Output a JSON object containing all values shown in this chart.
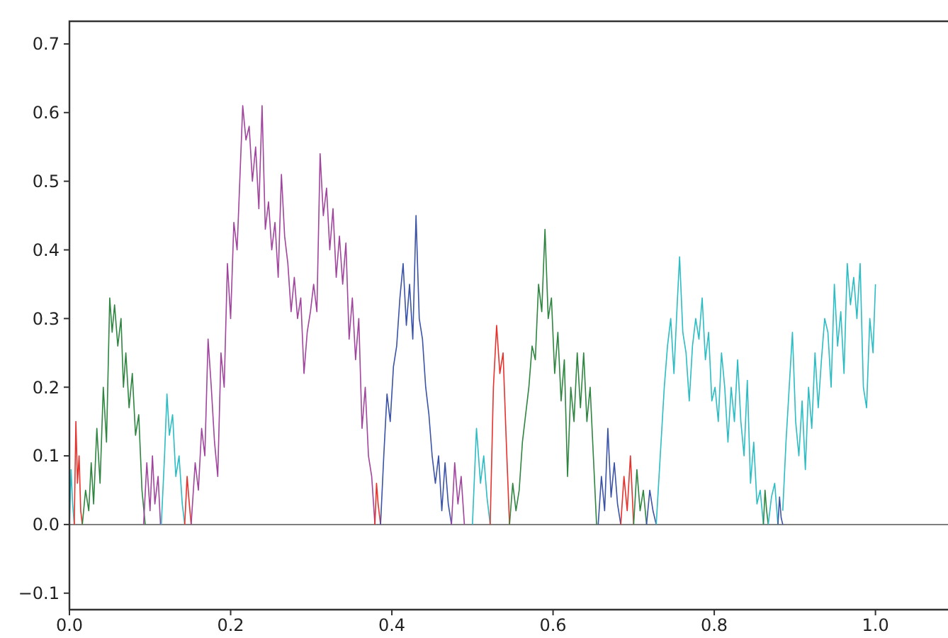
{
  "chart_data": {
    "type": "line",
    "xlim": [
      0,
      1.09
    ],
    "ylim": [
      -0.124,
      0.733
    ],
    "xticks": [
      {
        "value": 0,
        "label": "0.0"
      },
      {
        "value": 0.2,
        "label": "0.2"
      },
      {
        "value": 0.4,
        "label": "0.4"
      },
      {
        "value": 0.6,
        "label": "0.6"
      },
      {
        "value": 0.8,
        "label": "0.8"
      },
      {
        "value": 1,
        "label": "1.0"
      }
    ],
    "yticks": [
      {
        "value": -0.1,
        "label": "−0.1"
      },
      {
        "value": 0,
        "label": "0.0"
      },
      {
        "value": 0.1,
        "label": "0.1"
      },
      {
        "value": 0.2,
        "label": "0.2"
      },
      {
        "value": 0.3,
        "label": "0.3"
      },
      {
        "value": 0.4,
        "label": "0.4"
      },
      {
        "value": 0.5,
        "label": "0.5"
      },
      {
        "value": 0.6,
        "label": "0.6"
      },
      {
        "value": 0.7,
        "label": "0.7"
      }
    ],
    "ref_lines": [
      {
        "axis": "y",
        "value": 0,
        "color": "#808080"
      }
    ],
    "line_style": "solid",
    "series": [
      {
        "color": "#2bbcc4",
        "x": [
          0,
          0.002,
          0.004,
          0.006
        ],
        "values": [
          0,
          0.08,
          0.03,
          0
        ]
      },
      {
        "color": "#e8312b",
        "x": [
          0.006,
          0.008,
          0.01,
          0.012,
          0.014,
          0.016
        ],
        "values": [
          0,
          0.15,
          0.06,
          0.1,
          0.02,
          0
        ]
      },
      {
        "color": "#2e8540",
        "x": [
          0.016,
          0.02,
          0.024,
          0.027,
          0.03,
          0.034,
          0.038,
          0.042,
          0.046,
          0.05,
          0.053,
          0.056,
          0.06,
          0.064,
          0.067,
          0.07,
          0.074,
          0.078,
          0.082,
          0.086,
          0.09,
          0.094
        ],
        "values": [
          0,
          0.05,
          0.02,
          0.09,
          0.03,
          0.14,
          0.06,
          0.2,
          0.12,
          0.33,
          0.28,
          0.32,
          0.26,
          0.3,
          0.2,
          0.25,
          0.17,
          0.22,
          0.13,
          0.16,
          0.05,
          0
        ]
      },
      {
        "color": "#a0449e",
        "x": [
          0.092,
          0.096,
          0.1,
          0.103,
          0.106,
          0.11,
          0.113
        ],
        "values": [
          0,
          0.09,
          0.02,
          0.1,
          0.03,
          0.07,
          0
        ]
      },
      {
        "color": "#2bbcc4",
        "x": [
          0.114,
          0.118,
          0.121,
          0.124,
          0.128,
          0.132,
          0.136,
          0.14,
          0.143
        ],
        "values": [
          0,
          0.1,
          0.19,
          0.13,
          0.16,
          0.07,
          0.1,
          0.03,
          0
        ]
      },
      {
        "color": "#e8312b",
        "x": [
          0.143,
          0.146,
          0.148,
          0.151
        ],
        "values": [
          0,
          0.07,
          0.04,
          0
        ]
      },
      {
        "color": "#a0449e",
        "x": [
          0.151,
          0.156,
          0.16,
          0.164,
          0.168,
          0.172,
          0.176,
          0.18,
          0.184,
          0.188,
          0.192,
          0.196,
          0.2,
          0.204,
          0.208,
          0.212,
          0.215,
          0.219,
          0.223,
          0.227,
          0.231,
          0.235,
          0.239,
          0.243,
          0.247,
          0.251,
          0.255,
          0.259,
          0.263,
          0.267,
          0.271,
          0.275,
          0.279,
          0.283,
          0.287,
          0.291,
          0.295,
          0.299,
          0.303,
          0.307,
          0.311,
          0.315,
          0.319,
          0.323,
          0.327,
          0.331,
          0.335,
          0.339,
          0.343,
          0.347,
          0.351,
          0.355,
          0.359,
          0.363,
          0.367,
          0.371,
          0.375,
          0.379
        ],
        "values": [
          0,
          0.09,
          0.05,
          0.14,
          0.1,
          0.27,
          0.2,
          0.12,
          0.07,
          0.25,
          0.2,
          0.38,
          0.3,
          0.44,
          0.4,
          0.52,
          0.61,
          0.56,
          0.58,
          0.5,
          0.55,
          0.46,
          0.61,
          0.43,
          0.47,
          0.4,
          0.44,
          0.36,
          0.51,
          0.42,
          0.38,
          0.31,
          0.36,
          0.3,
          0.33,
          0.22,
          0.28,
          0.31,
          0.35,
          0.31,
          0.54,
          0.45,
          0.49,
          0.4,
          0.46,
          0.36,
          0.42,
          0.35,
          0.41,
          0.27,
          0.33,
          0.24,
          0.3,
          0.14,
          0.2,
          0.1,
          0.07,
          0
        ]
      },
      {
        "color": "#e8312b",
        "x": [
          0.379,
          0.381,
          0.383,
          0.386
        ],
        "values": [
          0,
          0.06,
          0.03,
          0
        ]
      },
      {
        "color": "#3a52a8",
        "x": [
          0.386,
          0.39,
          0.394,
          0.398,
          0.402,
          0.406,
          0.41,
          0.414,
          0.418,
          0.422,
          0.426,
          0.43,
          0.434,
          0.438,
          0.442,
          0.446,
          0.45,
          0.454,
          0.458,
          0.462,
          0.466,
          0.47,
          0.474
        ],
        "values": [
          0,
          0.1,
          0.19,
          0.15,
          0.23,
          0.26,
          0.33,
          0.38,
          0.29,
          0.35,
          0.27,
          0.45,
          0.3,
          0.27,
          0.2,
          0.16,
          0.1,
          0.06,
          0.1,
          0.02,
          0.09,
          0.03,
          0
        ]
      },
      {
        "color": "#a0449e",
        "x": [
          0.474,
          0.478,
          0.482,
          0.486,
          0.49
        ],
        "values": [
          0,
          0.09,
          0.03,
          0.07,
          0
        ]
      },
      {
        "color": "#2bbcc4",
        "x": [
          0.5,
          0.505,
          0.51,
          0.514,
          0.518,
          0.522
        ],
        "values": [
          0,
          0.14,
          0.06,
          0.1,
          0.04,
          0
        ]
      },
      {
        "color": "#e8312b",
        "x": [
          0.522,
          0.526,
          0.53,
          0.534,
          0.538,
          0.542,
          0.546
        ],
        "values": [
          0,
          0.2,
          0.29,
          0.22,
          0.25,
          0.12,
          0
        ]
      },
      {
        "color": "#2e8540",
        "x": [
          0.546,
          0.55,
          0.554,
          0.558,
          0.562,
          0.566,
          0.57,
          0.574,
          0.578,
          0.582,
          0.586,
          0.59,
          0.594,
          0.598,
          0.602,
          0.606,
          0.61,
          0.614,
          0.618,
          0.622,
          0.626,
          0.63,
          0.634,
          0.638,
          0.642,
          0.646,
          0.65,
          0.654
        ],
        "values": [
          0,
          0.06,
          0.02,
          0.05,
          0.12,
          0.16,
          0.2,
          0.26,
          0.24,
          0.35,
          0.31,
          0.43,
          0.3,
          0.33,
          0.22,
          0.28,
          0.18,
          0.24,
          0.07,
          0.2,
          0.15,
          0.25,
          0.17,
          0.25,
          0.15,
          0.2,
          0.1,
          0
        ]
      },
      {
        "color": "#3a52a8",
        "x": [
          0.656,
          0.66,
          0.664,
          0.668,
          0.672,
          0.676,
          0.68,
          0.684
        ],
        "values": [
          0,
          0.07,
          0.02,
          0.14,
          0.04,
          0.09,
          0.03,
          0
        ]
      },
      {
        "color": "#e8312b",
        "x": [
          0.684,
          0.688,
          0.692,
          0.696,
          0.7
        ],
        "values": [
          0,
          0.07,
          0.02,
          0.1,
          0
        ]
      },
      {
        "color": "#2e8540",
        "x": [
          0.7,
          0.704,
          0.708,
          0.712,
          0.716
        ],
        "values": [
          0,
          0.08,
          0.02,
          0.05,
          0
        ]
      },
      {
        "color": "#3a52a8",
        "x": [
          0.716,
          0.72,
          0.724,
          0.728
        ],
        "values": [
          0,
          0.05,
          0.02,
          0
        ]
      },
      {
        "color": "#2bbcc4",
        "x": [
          0.728,
          0.733,
          0.738,
          0.742,
          0.746,
          0.75,
          0.754,
          0.757,
          0.761,
          0.765,
          0.769,
          0.773,
          0.777,
          0.781,
          0.785,
          0.789,
          0.793,
          0.797,
          0.801,
          0.805,
          0.809,
          0.813,
          0.817,
          0.821,
          0.825,
          0.829,
          0.833,
          0.837,
          0.841,
          0.845,
          0.849,
          0.853,
          0.857,
          0.861
        ],
        "values": [
          0,
          0.1,
          0.2,
          0.26,
          0.3,
          0.22,
          0.32,
          0.39,
          0.28,
          0.25,
          0.18,
          0.26,
          0.3,
          0.27,
          0.33,
          0.24,
          0.28,
          0.18,
          0.2,
          0.15,
          0.25,
          0.2,
          0.12,
          0.2,
          0.15,
          0.24,
          0.15,
          0.1,
          0.21,
          0.06,
          0.12,
          0.03,
          0.05,
          0
        ]
      },
      {
        "color": "#2e8540",
        "x": [
          0.861,
          0.863,
          0.865,
          0.867
        ],
        "values": [
          0,
          0.05,
          0.02,
          0
        ]
      },
      {
        "color": "#2bbcc4",
        "x": [
          0.867,
          0.871,
          0.875,
          0.879
        ],
        "values": [
          0,
          0.04,
          0.06,
          0
        ]
      },
      {
        "color": "#3a52a8",
        "x": [
          0.879,
          0.881,
          0.883,
          0.885
        ],
        "values": [
          0,
          0.04,
          0.01,
          0
        ]
      },
      {
        "color": "#2bbcc4",
        "x": [
          0.885,
          0.889,
          0.893,
          0.897,
          0.901,
          0.905,
          0.909,
          0.913,
          0.917,
          0.921,
          0.925,
          0.929,
          0.933,
          0.937,
          0.941,
          0.945,
          0.949,
          0.953,
          0.957,
          0.961,
          0.965,
          0.969,
          0.973,
          0.977,
          0.981,
          0.985,
          0.989,
          0.993,
          0.997,
          1.0
        ],
        "values": [
          0.02,
          0.12,
          0.2,
          0.28,
          0.15,
          0.1,
          0.18,
          0.08,
          0.2,
          0.14,
          0.25,
          0.17,
          0.24,
          0.3,
          0.28,
          0.2,
          0.35,
          0.26,
          0.31,
          0.22,
          0.38,
          0.32,
          0.36,
          0.3,
          0.38,
          0.2,
          0.17,
          0.3,
          0.25,
          0.35
        ]
      }
    ]
  }
}
